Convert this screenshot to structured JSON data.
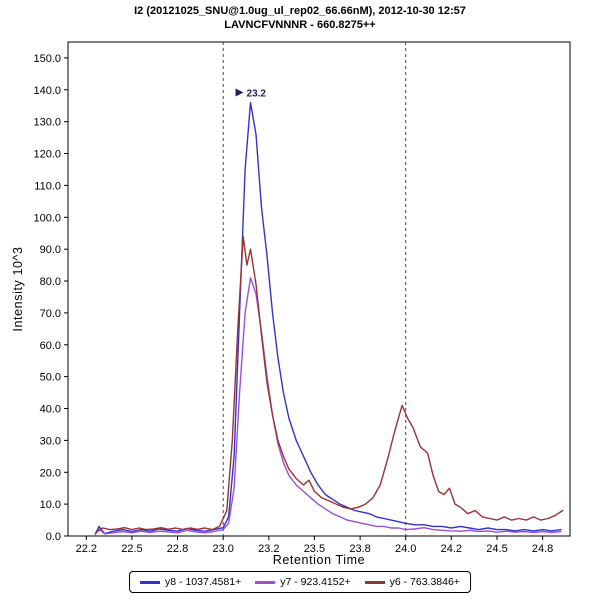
{
  "chart_data": {
    "type": "line",
    "title": "I2 (20121025_SNU@1.0ug_ul_rep02_66.66nM), 2012-10-30 12:57",
    "subtitle": "LAVNCFVNNNR - 660.8275++",
    "xlabel": "Retention Time",
    "ylabel": "Intensity 10^3",
    "xlim": [
      22.15,
      24.9
    ],
    "ylim": [
      0,
      155
    ],
    "grid": false,
    "legend_position": "bottom",
    "xticks": [
      22.25,
      22.5,
      22.75,
      23.0,
      23.25,
      23.5,
      23.75,
      24.0,
      24.25,
      24.5,
      24.75
    ],
    "xtick_labels": [
      "22.2",
      "22.5",
      "22.8",
      "23.0",
      "23.2",
      "23.5",
      "23.8",
      "24.0",
      "24.2",
      "24.5",
      "24.8"
    ],
    "yticks": [
      0,
      10,
      20,
      30,
      40,
      50,
      60,
      70,
      80,
      90,
      100,
      110,
      120,
      130,
      140,
      150
    ],
    "ytick_labels": [
      "0.0",
      "10.0",
      "20.0",
      "30.0",
      "40.0",
      "50.0",
      "60.0",
      "70.0",
      "80.0",
      "90.0",
      "100.0",
      "110.0",
      "120.0",
      "130.0",
      "140.0",
      "150.0"
    ],
    "boundaries": [
      23.0,
      24.0
    ],
    "peak_annotation": {
      "label": "23.2",
      "rt": 23.15,
      "intensity": 136,
      "color": "#202060"
    },
    "series": [
      {
        "name": "y8 - 1037.4581+",
        "color": "#3333cc",
        "points": [
          [
            22.3,
            0.6
          ],
          [
            22.32,
            3.0
          ],
          [
            22.35,
            0.8
          ],
          [
            22.4,
            1.5
          ],
          [
            22.45,
            2.0
          ],
          [
            22.5,
            1.4
          ],
          [
            22.55,
            2.0
          ],
          [
            22.6,
            1.5
          ],
          [
            22.65,
            2.2
          ],
          [
            22.7,
            1.8
          ],
          [
            22.75,
            1.5
          ],
          [
            22.8,
            2.4
          ],
          [
            22.85,
            1.8
          ],
          [
            22.9,
            1.5
          ],
          [
            22.95,
            2.0
          ],
          [
            23.0,
            2.6
          ],
          [
            23.03,
            6.0
          ],
          [
            23.06,
            25.0
          ],
          [
            23.09,
            70.0
          ],
          [
            23.12,
            115.0
          ],
          [
            23.15,
            136.0
          ],
          [
            23.18,
            126.0
          ],
          [
            23.21,
            103.0
          ],
          [
            23.24,
            88.0
          ],
          [
            23.27,
            70.0
          ],
          [
            23.3,
            56.0
          ],
          [
            23.33,
            45.0
          ],
          [
            23.36,
            37.0
          ],
          [
            23.4,
            30.0
          ],
          [
            23.44,
            25.0
          ],
          [
            23.48,
            20.0
          ],
          [
            23.52,
            16.0
          ],
          [
            23.56,
            13.0
          ],
          [
            23.6,
            11.5
          ],
          [
            23.64,
            10.0
          ],
          [
            23.68,
            9.0
          ],
          [
            23.72,
            8.0
          ],
          [
            23.76,
            7.5
          ],
          [
            23.8,
            7.0
          ],
          [
            23.84,
            6.0
          ],
          [
            23.88,
            5.5
          ],
          [
            23.92,
            5.0
          ],
          [
            23.96,
            4.5
          ],
          [
            24.0,
            4.0
          ],
          [
            24.05,
            3.5
          ],
          [
            24.1,
            3.5
          ],
          [
            24.15,
            3.0
          ],
          [
            24.2,
            3.0
          ],
          [
            24.25,
            2.5
          ],
          [
            24.3,
            3.0
          ],
          [
            24.35,
            2.5
          ],
          [
            24.4,
            2.0
          ],
          [
            24.45,
            2.5
          ],
          [
            24.5,
            2.0
          ],
          [
            24.55,
            2.0
          ],
          [
            24.6,
            1.6
          ],
          [
            24.65,
            2.0
          ],
          [
            24.7,
            1.6
          ],
          [
            24.75,
            2.0
          ],
          [
            24.8,
            1.6
          ],
          [
            24.85,
            2.0
          ]
        ]
      },
      {
        "name": "y7 - 923.4152+",
        "color": "#9b4fd1",
        "points": [
          [
            22.3,
            0.5
          ],
          [
            22.32,
            2.2
          ],
          [
            22.35,
            0.7
          ],
          [
            22.4,
            1.0
          ],
          [
            22.45,
            1.4
          ],
          [
            22.5,
            1.0
          ],
          [
            22.55,
            1.5
          ],
          [
            22.6,
            1.1
          ],
          [
            22.65,
            1.5
          ],
          [
            22.7,
            1.3
          ],
          [
            22.75,
            1.0
          ],
          [
            22.8,
            1.8
          ],
          [
            22.85,
            1.3
          ],
          [
            22.9,
            1.0
          ],
          [
            22.95,
            1.4
          ],
          [
            23.0,
            2.0
          ],
          [
            23.03,
            4.0
          ],
          [
            23.06,
            15.0
          ],
          [
            23.09,
            45.0
          ],
          [
            23.12,
            70.0
          ],
          [
            23.15,
            81.0
          ],
          [
            23.18,
            76.0
          ],
          [
            23.21,
            64.0
          ],
          [
            23.24,
            50.0
          ],
          [
            23.27,
            38.0
          ],
          [
            23.3,
            29.0
          ],
          [
            23.33,
            23.0
          ],
          [
            23.36,
            19.0
          ],
          [
            23.4,
            16.0
          ],
          [
            23.44,
            14.0
          ],
          [
            23.48,
            12.0
          ],
          [
            23.52,
            10.0
          ],
          [
            23.56,
            8.5
          ],
          [
            23.6,
            7.0
          ],
          [
            23.64,
            6.0
          ],
          [
            23.68,
            5.0
          ],
          [
            23.72,
            4.5
          ],
          [
            23.76,
            4.0
          ],
          [
            23.8,
            3.5
          ],
          [
            23.84,
            3.0
          ],
          [
            23.88,
            3.0
          ],
          [
            23.92,
            2.5
          ],
          [
            23.96,
            2.5
          ],
          [
            24.0,
            2.0
          ],
          [
            24.05,
            2.2
          ],
          [
            24.1,
            2.6
          ],
          [
            24.15,
            2.0
          ],
          [
            24.2,
            1.8
          ],
          [
            24.25,
            1.6
          ],
          [
            24.3,
            1.5
          ],
          [
            24.35,
            1.8
          ],
          [
            24.4,
            1.4
          ],
          [
            24.45,
            1.6
          ],
          [
            24.5,
            1.2
          ],
          [
            24.55,
            1.5
          ],
          [
            24.6,
            1.2
          ],
          [
            24.65,
            1.4
          ],
          [
            24.7,
            1.1
          ],
          [
            24.75,
            1.4
          ],
          [
            24.8,
            1.1
          ],
          [
            24.85,
            1.4
          ]
        ]
      },
      {
        "name": "y6 - 763.3846+",
        "color": "#993333",
        "points": [
          [
            22.3,
            1.0
          ],
          [
            22.34,
            2.5
          ],
          [
            22.38,
            2.0
          ],
          [
            22.42,
            2.2
          ],
          [
            22.46,
            2.6
          ],
          [
            22.5,
            2.0
          ],
          [
            22.54,
            2.5
          ],
          [
            22.58,
            2.0
          ],
          [
            22.62,
            2.2
          ],
          [
            22.66,
            2.6
          ],
          [
            22.7,
            2.1
          ],
          [
            22.74,
            2.5
          ],
          [
            22.78,
            2.0
          ],
          [
            22.82,
            2.5
          ],
          [
            22.86,
            2.1
          ],
          [
            22.9,
            2.5
          ],
          [
            22.94,
            2.0
          ],
          [
            22.98,
            3.0
          ],
          [
            23.02,
            8.0
          ],
          [
            23.05,
            30.0
          ],
          [
            23.08,
            65.0
          ],
          [
            23.11,
            94.0
          ],
          [
            23.13,
            85.0
          ],
          [
            23.15,
            90.0
          ],
          [
            23.18,
            79.0
          ],
          [
            23.21,
            63.0
          ],
          [
            23.24,
            48.0
          ],
          [
            23.27,
            38.0
          ],
          [
            23.3,
            30.0
          ],
          [
            23.33,
            25.0
          ],
          [
            23.36,
            21.0
          ],
          [
            23.4,
            18.0
          ],
          [
            23.44,
            16.0
          ],
          [
            23.47,
            17.5
          ],
          [
            23.5,
            14.0
          ],
          [
            23.54,
            12.0
          ],
          [
            23.58,
            11.0
          ],
          [
            23.62,
            10.0
          ],
          [
            23.66,
            9.0
          ],
          [
            23.7,
            8.5
          ],
          [
            23.74,
            9.0
          ],
          [
            23.78,
            10.0
          ],
          [
            23.82,
            12.0
          ],
          [
            23.86,
            16.0
          ],
          [
            23.9,
            24.0
          ],
          [
            23.94,
            33.0
          ],
          [
            23.98,
            41.0
          ],
          [
            24.01,
            37.0
          ],
          [
            24.04,
            34.0
          ],
          [
            24.08,
            28.0
          ],
          [
            24.12,
            26.0
          ],
          [
            24.15,
            19.0
          ],
          [
            24.18,
            14.0
          ],
          [
            24.21,
            13.0
          ],
          [
            24.24,
            15.0
          ],
          [
            24.27,
            10.0
          ],
          [
            24.3,
            9.0
          ],
          [
            24.34,
            7.0
          ],
          [
            24.38,
            8.0
          ],
          [
            24.42,
            6.0
          ],
          [
            24.46,
            5.5
          ],
          [
            24.5,
            5.0
          ],
          [
            24.54,
            6.0
          ],
          [
            24.58,
            5.0
          ],
          [
            24.62,
            5.5
          ],
          [
            24.66,
            5.0
          ],
          [
            24.7,
            6.0
          ],
          [
            24.74,
            5.0
          ],
          [
            24.78,
            5.5
          ],
          [
            24.82,
            6.5
          ],
          [
            24.86,
            8.0
          ]
        ]
      }
    ]
  }
}
